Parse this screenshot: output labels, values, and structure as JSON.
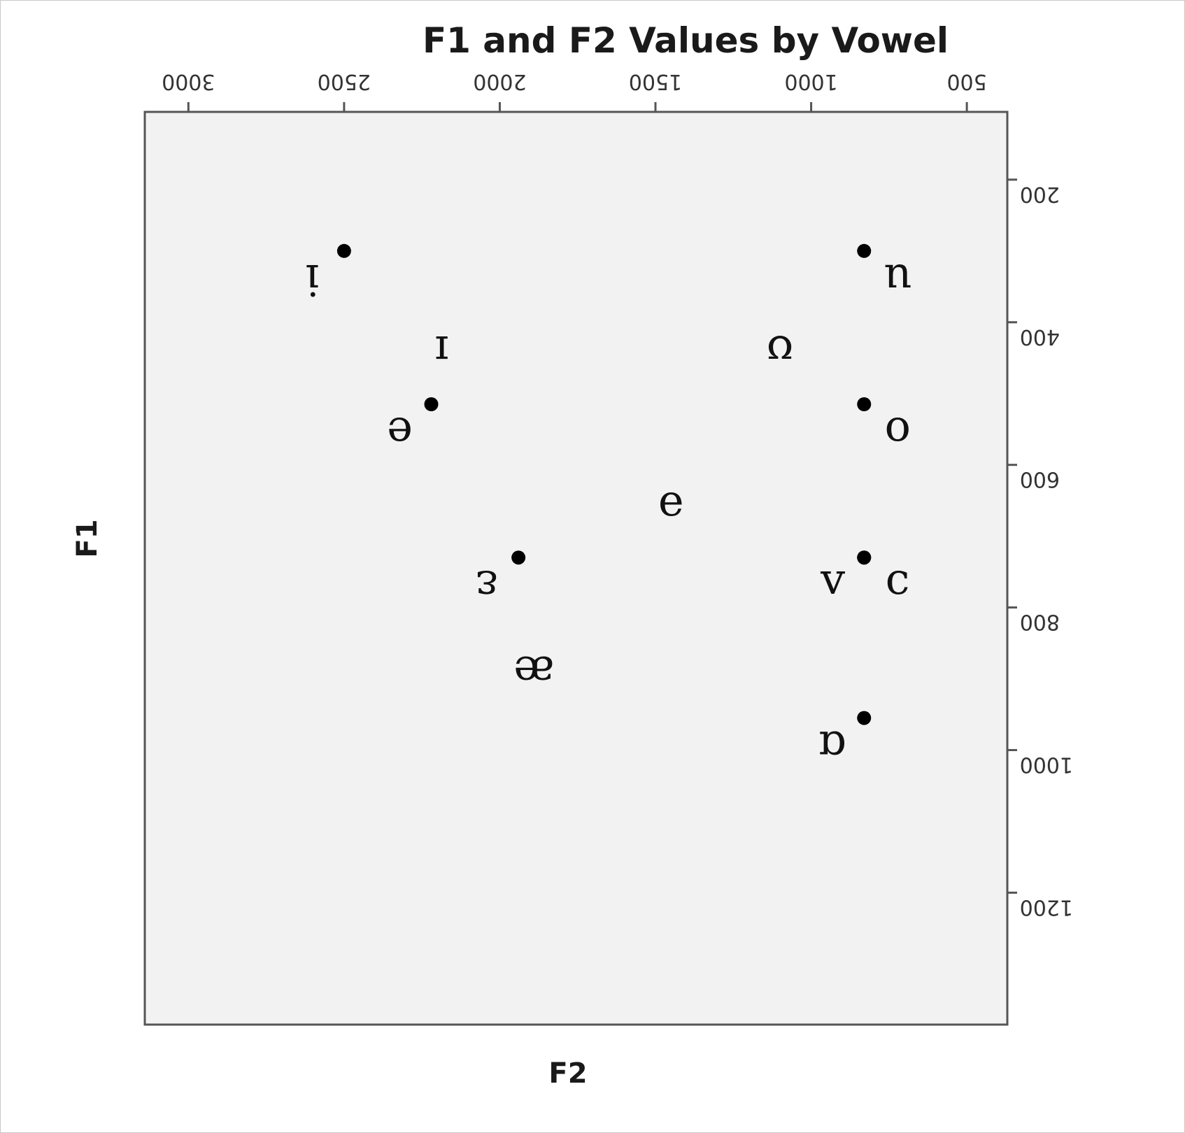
{
  "chart_data": {
    "type": "scatter",
    "title": "F1 and F2 Values by Vowel",
    "xlabel": "F2",
    "ylabel": "F1",
    "x_axis_position": "top",
    "y_axis_position": "right",
    "x_reversed": true,
    "y_reversed": false,
    "xlim": [
      3140,
      370
    ],
    "ylim": [
      1385,
      105
    ],
    "x_ticks": [
      3000,
      2500,
      2000,
      1500,
      1000,
      500
    ],
    "y_ticks": [
      200,
      400,
      600,
      800,
      1000,
      1200
    ],
    "tick_labels_mirrored": true,
    "grid": false,
    "points": [
      {
        "label": "i",
        "x": 2500,
        "y": 300,
        "marker": true,
        "label_side": "left"
      },
      {
        "label": "u",
        "x": 830,
        "y": 300,
        "marker": true,
        "label_side": "right"
      },
      {
        "label": "ɪ",
        "x": 2185,
        "y": 400,
        "marker": false,
        "label_side": "center"
      },
      {
        "label": "ʊ",
        "x": 1100,
        "y": 400,
        "marker": false,
        "label_side": "center"
      },
      {
        "label": "e",
        "x": 2220,
        "y": 515,
        "marker": true,
        "label_side": "left"
      },
      {
        "label": "o",
        "x": 830,
        "y": 515,
        "marker": true,
        "label_side": "right"
      },
      {
        "label": "ə",
        "x": 1450,
        "y": 620,
        "marker": false,
        "label_side": "center"
      },
      {
        "label": "ɛ",
        "x": 1940,
        "y": 730,
        "marker": true,
        "label_side": "left"
      },
      {
        "label": "ʌ",
        "x": 830,
        "y": 730,
        "marker": true,
        "label_side": "left"
      },
      {
        "label": "ɔ",
        "x": 830,
        "y": 730,
        "marker": true,
        "label_side": "right"
      },
      {
        "label": "æ",
        "x": 1890,
        "y": 850,
        "marker": false,
        "label_side": "center"
      },
      {
        "label": "ɑ",
        "x": 830,
        "y": 955,
        "marker": true,
        "label_side": "left"
      }
    ]
  }
}
